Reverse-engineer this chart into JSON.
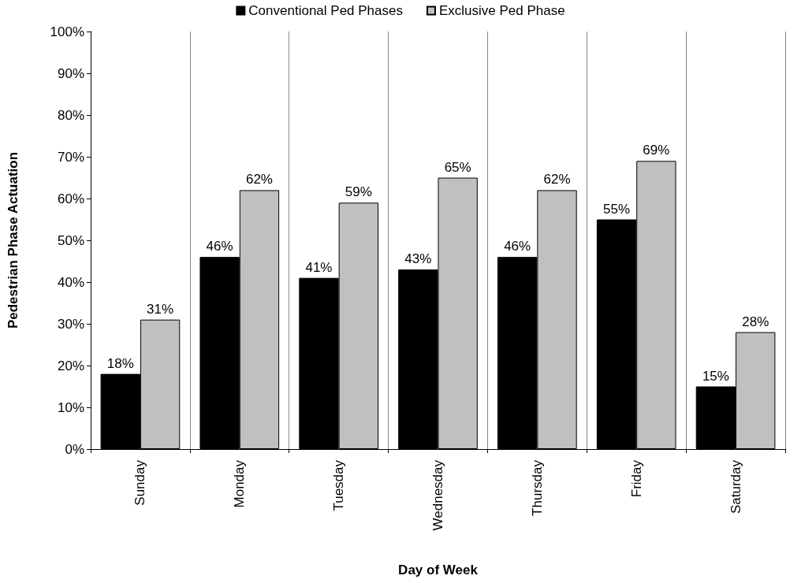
{
  "chart_data": {
    "type": "bar",
    "xlabel": "Day of Week",
    "ylabel": "Pedestrian Phase Actuation",
    "categories": [
      "Sunday",
      "Monday",
      "Tuesday",
      "Wednesday",
      "Thursday",
      "Friday",
      "Saturday"
    ],
    "series": [
      {
        "name": "Conventional Ped Phases",
        "color": "#000000",
        "values": [
          18,
          46,
          41,
          43,
          46,
          55,
          15
        ],
        "value_labels": [
          "18%",
          "46%",
          "41%",
          "43%",
          "46%",
          "55%",
          "15%"
        ]
      },
      {
        "name": "Exclusive Ped Phase",
        "color": "#c0c0c0",
        "values": [
          31,
          62,
          59,
          65,
          62,
          69,
          28
        ],
        "value_labels": [
          "31%",
          "62%",
          "59%",
          "65%",
          "62%",
          "69%",
          "28%"
        ]
      }
    ],
    "ylim": [
      0,
      100
    ],
    "yticks": [
      {
        "value": 0,
        "label": "0%"
      },
      {
        "value": 10,
        "label": "10%"
      },
      {
        "value": 20,
        "label": "20%"
      },
      {
        "value": 30,
        "label": "30%"
      },
      {
        "value": 40,
        "label": "40%"
      },
      {
        "value": 50,
        "label": "50%"
      },
      {
        "value": 60,
        "label": "60%"
      },
      {
        "value": 70,
        "label": "70%"
      },
      {
        "value": 80,
        "label": "80%"
      },
      {
        "value": 90,
        "label": "90%"
      },
      {
        "value": 100,
        "label": "100%"
      }
    ],
    "grid": "x",
    "legend": "top"
  }
}
